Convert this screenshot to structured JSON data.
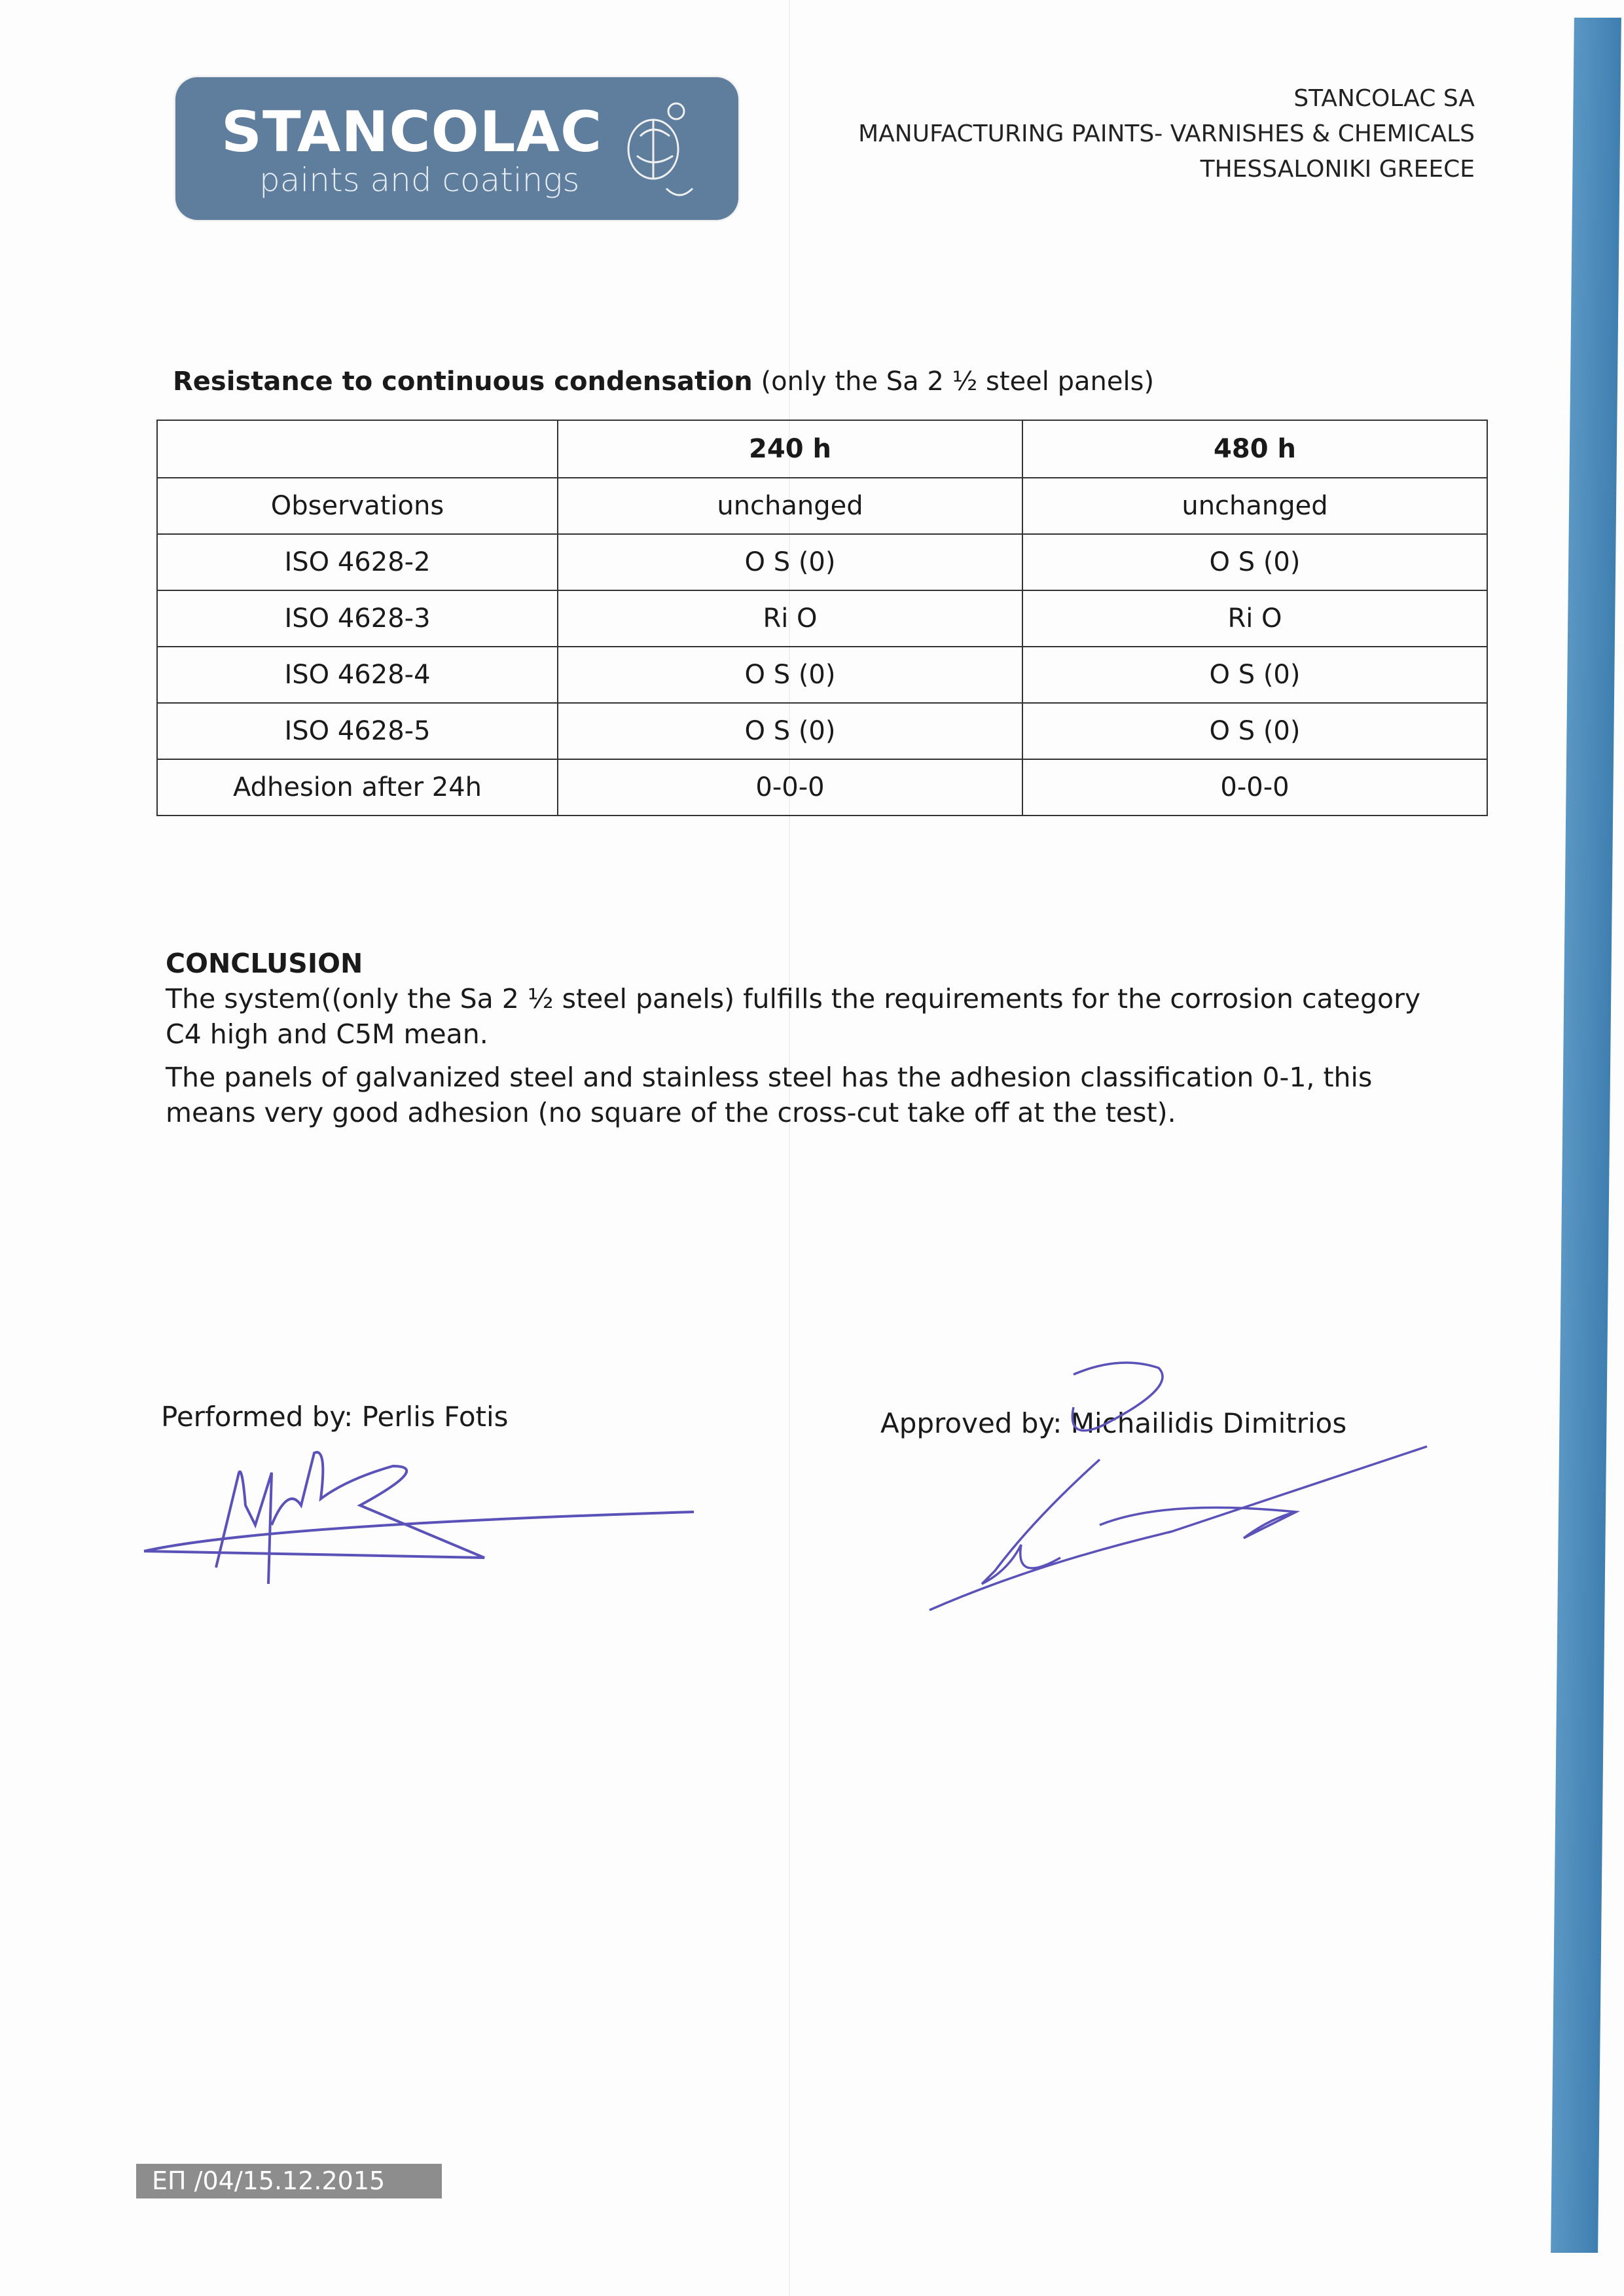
{
  "logo": {
    "brand": "STANCOLAC",
    "tagline": "paints and coatings",
    "colors": {
      "background": "#5f7d9c"
    }
  },
  "company": {
    "name": "STANCOLAC SA",
    "activity": "MANUFACTURING PAINTS- VARNISHES & CHEMICALS",
    "location": "THESSALONIKI GREECE"
  },
  "section": {
    "title_bold": "Resistance to continuous condensation",
    "title_rest": " (only the Sa 2 ½ steel panels)"
  },
  "table": {
    "headers": [
      "",
      "240 h",
      "480 h"
    ],
    "rows": [
      [
        "Observations",
        "unchanged",
        "unchanged"
      ],
      [
        "ISO 4628-2",
        "O S (0)",
        "O S (0)"
      ],
      [
        "ISO 4628-3",
        "Ri O",
        "Ri O"
      ],
      [
        "ISO 4628-4",
        "O S (0)",
        "O S (0)"
      ],
      [
        "ISO 4628-5",
        "O S (0)",
        "O S (0)"
      ],
      [
        "Adhesion after 24h",
        "0-0-0",
        "0-0-0"
      ]
    ]
  },
  "conclusion": {
    "heading": "CONCLUSION",
    "p1": "The system((only the Sa 2 ½ steel panels) fulfills the requirements for the corrosion category C4 high and C5M mean.",
    "p2": "The panels of galvanized steel and stainless steel has the adhesion classification 0-1, this means very good adhesion (no square of the cross-cut take off at the test)."
  },
  "signatures": {
    "performed": "Performed by:  Perlis Fotis",
    "approved": "Approved  by: Michailidis Dimitrios",
    "ink_color": "#5a52b8"
  },
  "footer": {
    "code": "ΕΠ   /04/15.12.2015"
  },
  "colors": {
    "stripe": "#4a8ab8"
  }
}
